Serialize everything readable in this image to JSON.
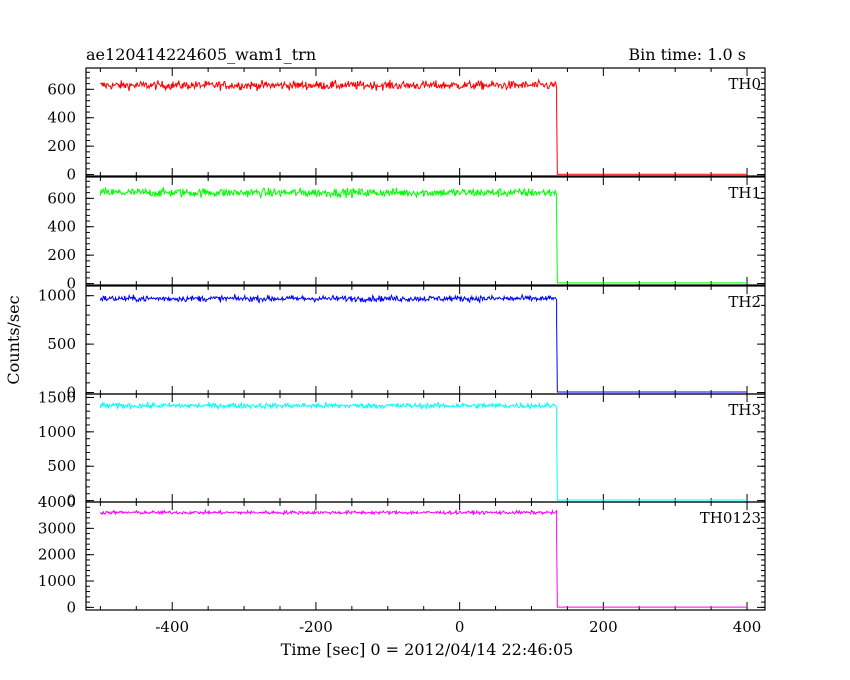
{
  "chart_data": {
    "type": "line",
    "title": "ae120414224605_wam1_trn",
    "bin_time_label": "Bin time: 1.0 s",
    "xlabel": "Time [sec] 0 = 2012/04/14 22:46:05",
    "ylabel": "Counts/sec",
    "xlim": [
      -520,
      425
    ],
    "xticks": [
      -400,
      -200,
      0,
      200,
      400
    ],
    "drop_time": 135,
    "end_time": 400,
    "start_time": -500,
    "grid": false,
    "panels": [
      {
        "name": "TH0",
        "color": "#ff0000",
        "ylim": [
          -10,
          750
        ],
        "yticks": [
          0,
          200,
          400,
          600
        ],
        "mean": 628,
        "noise": 22,
        "after_drop": 2
      },
      {
        "name": "TH1",
        "color": "#00ff00",
        "ylim": [
          -10,
          750
        ],
        "yticks": [
          0,
          200,
          400,
          600
        ],
        "mean": 640,
        "noise": 22,
        "after_drop": 5
      },
      {
        "name": "TH2",
        "color": "#0000ff",
        "ylim": [
          -15,
          1100
        ],
        "yticks": [
          0,
          500,
          1000
        ],
        "mean": 970,
        "noise": 22,
        "after_drop": 5
      },
      {
        "name": "TH3",
        "color": "#00ffff",
        "ylim": [
          -20,
          1550
        ],
        "yticks": [
          0,
          500,
          1000,
          1500
        ],
        "mean": 1380,
        "noise": 28,
        "after_drop": 10
      },
      {
        "name": "TH0123",
        "color": "#ff00ff",
        "ylim": [
          -100,
          4000
        ],
        "yticks": [
          0,
          1000,
          2000,
          3000,
          4000
        ],
        "mean": 3600,
        "noise": 45,
        "after_drop": 10
      }
    ]
  }
}
